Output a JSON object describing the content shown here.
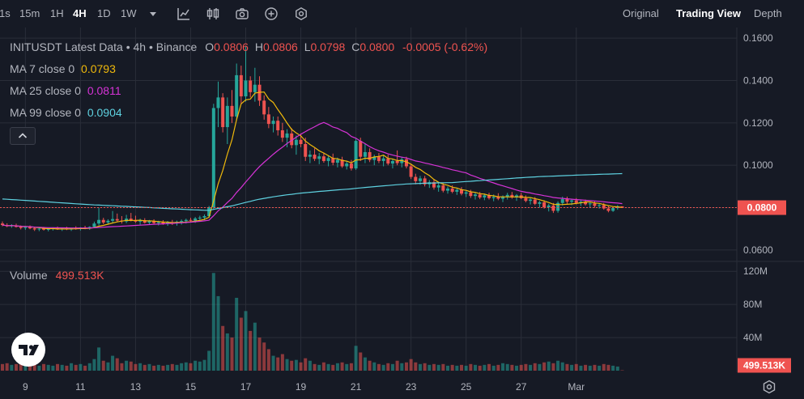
{
  "toolbar": {
    "timeframes": [
      "1s",
      "15m",
      "1H",
      "4H",
      "1D",
      "1W"
    ],
    "active_timeframe": "4H",
    "views": [
      "Original",
      "Trading View",
      "Depth"
    ],
    "active_view": "Trading View"
  },
  "legend": {
    "symbol": "INITUSDT Latest Data",
    "interval": "4h",
    "exchange": "Binance",
    "o_label": "O",
    "o": "0.0806",
    "h_label": "H",
    "h": "0.0806",
    "l_label": "L",
    "l": "0.0798",
    "c_label": "C",
    "c": "0.0800",
    "change": "-0.0005 (-0.62%)",
    "ma7_label": "MA 7 close 0",
    "ma7": "0.0793",
    "ma25_label": "MA 25 close 0",
    "ma25": "0.0811",
    "ma99_label": "MA 99 close 0",
    "ma99": "0.0904",
    "volume_label": "Volume",
    "volume": "499.513K"
  },
  "colors": {
    "up": "#26a69a",
    "down": "#ef5350",
    "ma7": "#f0b90b",
    "ma25": "#d633d6",
    "ma99": "#5ed1e0",
    "price_tag": "#ef5350"
  },
  "chart_data": {
    "type": "candlestick",
    "x_tick_labels": [
      "9",
      "11",
      "13",
      "15",
      "17",
      "19",
      "21",
      "23",
      "25",
      "27",
      "Mar"
    ],
    "price_axis": {
      "ticks": [
        "0.1600",
        "0.1400",
        "0.1200",
        "0.1000",
        "0.0800",
        "0.0600"
      ],
      "range": [
        0.055,
        0.165
      ]
    },
    "volume_axis": {
      "ticks": [
        "120M",
        "80M",
        "40M"
      ],
      "range": [
        0,
        130
      ]
    },
    "last_price": "0.0800",
    "last_volume": "499.513K",
    "candles": [
      [
        0.0725,
        0.0735,
        0.0712,
        0.0718,
        8
      ],
      [
        0.0718,
        0.0726,
        0.0708,
        0.0712,
        9
      ],
      [
        0.0712,
        0.0722,
        0.0705,
        0.0716,
        7
      ],
      [
        0.0716,
        0.0724,
        0.0706,
        0.0709,
        8
      ],
      [
        0.0709,
        0.0716,
        0.0697,
        0.0704,
        10
      ],
      [
        0.0704,
        0.0712,
        0.0695,
        0.0708,
        6
      ],
      [
        0.0708,
        0.0716,
        0.0698,
        0.0702,
        7
      ],
      [
        0.0702,
        0.0708,
        0.069,
        0.0697,
        9
      ],
      [
        0.0697,
        0.0705,
        0.0689,
        0.0701,
        6
      ],
      [
        0.0701,
        0.0709,
        0.0692,
        0.0696,
        8
      ],
      [
        0.0696,
        0.0703,
        0.0688,
        0.0699,
        7
      ],
      [
        0.0699,
        0.0707,
        0.0692,
        0.0703,
        6
      ],
      [
        0.0703,
        0.0711,
        0.0695,
        0.0698,
        8
      ],
      [
        0.0698,
        0.0706,
        0.069,
        0.0702,
        7
      ],
      [
        0.0702,
        0.071,
        0.0694,
        0.0697,
        6
      ],
      [
        0.0697,
        0.0705,
        0.069,
        0.0703,
        9
      ],
      [
        0.0703,
        0.0712,
        0.0696,
        0.07,
        7
      ],
      [
        0.07,
        0.0708,
        0.0692,
        0.0706,
        8
      ],
      [
        0.0706,
        0.0714,
        0.0698,
        0.0702,
        6
      ],
      [
        0.0702,
        0.0712,
        0.0695,
        0.0709,
        9
      ],
      [
        0.0709,
        0.0734,
        0.0703,
        0.0725,
        14
      ],
      [
        0.0725,
        0.08,
        0.0716,
        0.0742,
        28
      ],
      [
        0.0742,
        0.0752,
        0.0722,
        0.073,
        12
      ],
      [
        0.073,
        0.0745,
        0.072,
        0.0738,
        10
      ],
      [
        0.0738,
        0.0784,
        0.0728,
        0.0746,
        18
      ],
      [
        0.0746,
        0.0772,
        0.0733,
        0.0739,
        15
      ],
      [
        0.0739,
        0.076,
        0.0725,
        0.0735,
        9
      ],
      [
        0.0735,
        0.0766,
        0.0727,
        0.0748,
        12
      ],
      [
        0.0748,
        0.0775,
        0.0735,
        0.074,
        11
      ],
      [
        0.074,
        0.0762,
        0.0728,
        0.0734,
        8
      ],
      [
        0.0734,
        0.0748,
        0.072,
        0.0741,
        9
      ],
      [
        0.0741,
        0.075,
        0.0725,
        0.0729,
        7
      ],
      [
        0.0729,
        0.0742,
        0.0718,
        0.0736,
        8
      ],
      [
        0.0736,
        0.0745,
        0.0721,
        0.0727,
        6
      ],
      [
        0.0727,
        0.0738,
        0.0716,
        0.0732,
        7
      ],
      [
        0.0732,
        0.0741,
        0.0719,
        0.0724,
        6
      ],
      [
        0.0724,
        0.0737,
        0.0714,
        0.073,
        7
      ],
      [
        0.073,
        0.0742,
        0.0718,
        0.0726,
        8
      ],
      [
        0.0726,
        0.0739,
        0.0715,
        0.0733,
        7
      ],
      [
        0.0733,
        0.0744,
        0.072,
        0.0737,
        9
      ],
      [
        0.0737,
        0.0748,
        0.0725,
        0.0742,
        10
      ],
      [
        0.0742,
        0.0752,
        0.073,
        0.0738,
        9
      ],
      [
        0.0738,
        0.0756,
        0.0728,
        0.0749,
        12
      ],
      [
        0.0749,
        0.0762,
        0.0736,
        0.0753,
        11
      ],
      [
        0.0753,
        0.0768,
        0.0741,
        0.076,
        13
      ],
      [
        0.076,
        0.0808,
        0.0752,
        0.0802,
        24
      ],
      [
        0.0802,
        0.129,
        0.079,
        0.127,
        118
      ],
      [
        0.127,
        0.1395,
        0.118,
        0.132,
        90
      ],
      [
        0.132,
        0.134,
        0.1155,
        0.118,
        54
      ],
      [
        0.118,
        0.132,
        0.11,
        0.128,
        45
      ],
      [
        0.128,
        0.1355,
        0.12,
        0.123,
        40
      ],
      [
        0.123,
        0.148,
        0.121,
        0.1425,
        88
      ],
      [
        0.1425,
        0.147,
        0.129,
        0.1325,
        64
      ],
      [
        0.1325,
        0.156,
        0.13,
        0.14,
        72
      ],
      [
        0.14,
        0.142,
        0.132,
        0.1345,
        48
      ],
      [
        0.1345,
        0.146,
        0.13,
        0.138,
        58
      ],
      [
        0.138,
        0.142,
        0.128,
        0.1305,
        40
      ],
      [
        0.1305,
        0.133,
        0.1215,
        0.124,
        34
      ],
      [
        0.124,
        0.1275,
        0.1175,
        0.1195,
        26
      ],
      [
        0.1195,
        0.123,
        0.1155,
        0.121,
        18
      ],
      [
        0.121,
        0.123,
        0.114,
        0.1165,
        16
      ],
      [
        0.1165,
        0.12,
        0.111,
        0.113,
        20
      ],
      [
        0.113,
        0.117,
        0.1085,
        0.115,
        14
      ],
      [
        0.115,
        0.1175,
        0.108,
        0.1095,
        12
      ],
      [
        0.1095,
        0.114,
        0.105,
        0.112,
        13
      ],
      [
        0.112,
        0.115,
        0.1085,
        0.11,
        10
      ],
      [
        0.11,
        0.113,
        0.102,
        0.104,
        15
      ],
      [
        0.104,
        0.107,
        0.101,
        0.105,
        12
      ],
      [
        0.105,
        0.108,
        0.102,
        0.103,
        8
      ],
      [
        0.103,
        0.1058,
        0.1005,
        0.1042,
        7
      ],
      [
        0.1042,
        0.106,
        0.1012,
        0.102,
        10
      ],
      [
        0.102,
        0.1045,
        0.0995,
        0.1034,
        8
      ],
      [
        0.1034,
        0.1055,
        0.1,
        0.1012,
        7
      ],
      [
        0.1012,
        0.1036,
        0.099,
        0.1026,
        9
      ],
      [
        0.1026,
        0.104,
        0.0988,
        0.0995,
        10
      ],
      [
        0.0995,
        0.1018,
        0.098,
        0.1008,
        8
      ],
      [
        0.1008,
        0.1025,
        0.0975,
        0.0985,
        9
      ],
      [
        0.0985,
        0.1125,
        0.0978,
        0.1115,
        30
      ],
      [
        0.1115,
        0.113,
        0.102,
        0.104,
        22
      ],
      [
        0.104,
        0.11,
        0.101,
        0.1062,
        16
      ],
      [
        0.1062,
        0.108,
        0.1015,
        0.1025,
        12
      ],
      [
        0.1025,
        0.105,
        0.1,
        0.104,
        10
      ],
      [
        0.104,
        0.1058,
        0.101,
        0.102,
        8
      ],
      [
        0.102,
        0.1045,
        0.0995,
        0.1032,
        7
      ],
      [
        0.1032,
        0.105,
        0.1,
        0.1008,
        9
      ],
      [
        0.1008,
        0.103,
        0.0985,
        0.102,
        8
      ],
      [
        0.102,
        0.107,
        0.1,
        0.101,
        12
      ],
      [
        0.101,
        0.104,
        0.099,
        0.1028,
        9
      ],
      [
        0.1028,
        0.104,
        0.0985,
        0.0995,
        10
      ],
      [
        0.0995,
        0.1005,
        0.0935,
        0.0945,
        14
      ],
      [
        0.0945,
        0.096,
        0.091,
        0.0925,
        10
      ],
      [
        0.0925,
        0.095,
        0.0908,
        0.0938,
        8
      ],
      [
        0.0938,
        0.095,
        0.09,
        0.091,
        9
      ],
      [
        0.091,
        0.093,
        0.0893,
        0.092,
        7
      ],
      [
        0.092,
        0.0932,
        0.0885,
        0.0895,
        8
      ],
      [
        0.0895,
        0.0915,
        0.0875,
        0.0905,
        7
      ],
      [
        0.0905,
        0.0916,
        0.0872,
        0.088,
        8
      ],
      [
        0.088,
        0.09,
        0.0866,
        0.089,
        6
      ],
      [
        0.089,
        0.0905,
        0.0868,
        0.0875,
        7
      ],
      [
        0.0875,
        0.0893,
        0.086,
        0.0884,
        6
      ],
      [
        0.0884,
        0.0897,
        0.0858,
        0.0866,
        7
      ],
      [
        0.0866,
        0.0882,
        0.085,
        0.0872,
        6
      ],
      [
        0.0872,
        0.0884,
        0.0846,
        0.0855,
        8
      ],
      [
        0.0855,
        0.087,
        0.0838,
        0.0862,
        7
      ],
      [
        0.0862,
        0.0874,
        0.084,
        0.0848,
        6
      ],
      [
        0.0848,
        0.0866,
        0.0835,
        0.0858,
        7
      ],
      [
        0.0858,
        0.087,
        0.0838,
        0.0845,
        8
      ],
      [
        0.0845,
        0.0862,
        0.083,
        0.085,
        6
      ],
      [
        0.085,
        0.0868,
        0.0835,
        0.0842,
        7
      ],
      [
        0.0842,
        0.0858,
        0.0826,
        0.0852,
        9
      ],
      [
        0.0852,
        0.087,
        0.0838,
        0.086,
        8
      ],
      [
        0.086,
        0.0874,
        0.0842,
        0.0848,
        7
      ],
      [
        0.0848,
        0.0864,
        0.0832,
        0.0858,
        6
      ],
      [
        0.0858,
        0.087,
        0.084,
        0.0845,
        7
      ],
      [
        0.0845,
        0.0858,
        0.0825,
        0.0832,
        8
      ],
      [
        0.0832,
        0.0848,
        0.0815,
        0.0838,
        7
      ],
      [
        0.0838,
        0.085,
        0.0812,
        0.0818,
        9
      ],
      [
        0.0818,
        0.0832,
        0.08,
        0.0825,
        8
      ],
      [
        0.0825,
        0.0835,
        0.0795,
        0.0802,
        10
      ],
      [
        0.0802,
        0.0818,
        0.0782,
        0.081,
        11
      ],
      [
        0.081,
        0.0822,
        0.0775,
        0.0785,
        9
      ],
      [
        0.0785,
        0.083,
        0.0776,
        0.0822,
        12
      ],
      [
        0.0822,
        0.0852,
        0.081,
        0.084,
        10
      ],
      [
        0.084,
        0.0852,
        0.0818,
        0.0828,
        8
      ],
      [
        0.0828,
        0.084,
        0.0812,
        0.0834,
        7
      ],
      [
        0.0834,
        0.0845,
        0.0815,
        0.0822,
        8
      ],
      [
        0.0822,
        0.0836,
        0.0808,
        0.0828,
        6
      ],
      [
        0.0828,
        0.0838,
        0.081,
        0.0816,
        7
      ],
      [
        0.0816,
        0.0828,
        0.0802,
        0.082,
        6
      ],
      [
        0.082,
        0.083,
        0.08,
        0.0808,
        7
      ],
      [
        0.0808,
        0.082,
        0.0795,
        0.0812,
        6
      ],
      [
        0.0812,
        0.0822,
        0.079,
        0.0796,
        8
      ],
      [
        0.0796,
        0.081,
        0.0778,
        0.0785,
        7
      ],
      [
        0.0785,
        0.0802,
        0.078,
        0.0798,
        6
      ],
      [
        0.0798,
        0.0812,
        0.079,
        0.0806,
        5
      ],
      [
        0.0806,
        0.0806,
        0.0798,
        0.08,
        0.5
      ]
    ]
  }
}
